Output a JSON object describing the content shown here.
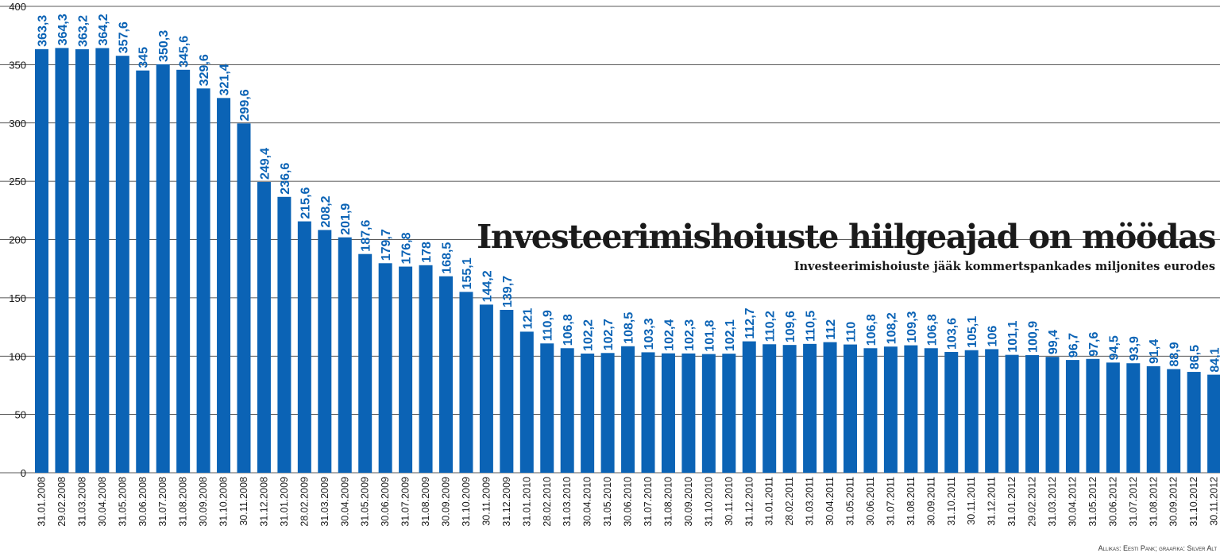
{
  "chart_data": {
    "type": "bar",
    "title": "Investeerimishoiuste hiilgeajad on möödas",
    "subtitle": "Investeerimishoiuste jääk kommertspankades miljonites eurodes",
    "source": "Allikas: Eesti Pank; graafika: Silver Alt",
    "ylim": [
      0,
      400
    ],
    "yticks": [
      0,
      50,
      100,
      150,
      200,
      250,
      300,
      350,
      400
    ],
    "categories": [
      "31.01.2008",
      "29.02.2008",
      "31.03.2008",
      "30.04.2008",
      "31.05.2008",
      "30.06.2008",
      "31.07.2008",
      "31.08.2008",
      "30.09.2008",
      "31.10.2008",
      "30.11.2008",
      "31.12.2008",
      "31.01.2009",
      "28.02.2009",
      "31.03.2009",
      "30.04.2009",
      "31.05.2009",
      "30.06.2009",
      "31.07.2009",
      "31.08.2009",
      "30.09.2009",
      "31.10.2009",
      "30.11.2009",
      "31.12.2009",
      "31.01.2010",
      "28.02.2010",
      "31.03.2010",
      "30.04.2010",
      "31.05.2010",
      "30.06.2010",
      "31.07.2010",
      "31.08.2010",
      "30.09.2010",
      "31.10.2010",
      "30.11.2010",
      "31.12.2010",
      "31.01.2011",
      "28.02.2011",
      "31.03.2011",
      "30.04.2011",
      "31.05.2011",
      "30.06.2011",
      "31.07.2011",
      "31.08.2011",
      "30.09.2011",
      "31.10.2011",
      "30.11.2011",
      "31.12.2011",
      "31.01.2012",
      "29.02.2012",
      "31.03.2012",
      "30.04.2012",
      "31.05.2012",
      "30.06.2012",
      "31.07.2012",
      "31.08.2012",
      "30.09.2012",
      "31.10.2012",
      "30.11.2012"
    ],
    "values": [
      363.3,
      364.3,
      363.2,
      364.2,
      357.6,
      345,
      350.3,
      345.6,
      329.6,
      321.4,
      299.6,
      249.4,
      236.6,
      215.6,
      208.2,
      201.9,
      187.6,
      179.7,
      176.8,
      178,
      168.5,
      155.1,
      144.2,
      139.7,
      121,
      110.9,
      106.8,
      102.2,
      102.7,
      108.5,
      103.3,
      102.4,
      102.3,
      101.8,
      102.1,
      112.7,
      110.2,
      109.6,
      110.5,
      112,
      110,
      106.8,
      108.2,
      109.3,
      106.8,
      103.6,
      105.1,
      106,
      101.1,
      100.9,
      99.4,
      96.7,
      97.6,
      94.5,
      93.9,
      91.4,
      88.9,
      86.5,
      84.1
    ],
    "labels": [
      "363,3",
      "364,3",
      "363,2",
      "364,2",
      "357,6",
      "345",
      "350,3",
      "345,6",
      "329,6",
      "321,4",
      "299,6",
      "249,4",
      "236,6",
      "215,6",
      "208,2",
      "201,9",
      "187,6",
      "179,7",
      "176,8",
      "178",
      "168,5",
      "155,1",
      "144,2",
      "139,7",
      "121",
      "110,9",
      "106,8",
      "102,2",
      "102,7",
      "108,5",
      "103,3",
      "102,4",
      "102,3",
      "101,8",
      "102,1",
      "112,7",
      "110,2",
      "109,6",
      "110,5",
      "112",
      "110",
      "106,8",
      "108,2",
      "109,3",
      "106,8",
      "103,6",
      "105,1",
      "106",
      "101,1",
      "100,9",
      "99,4",
      "96,7",
      "97,6",
      "94,5",
      "93,9",
      "91,4",
      "88,9",
      "86,5",
      "84,1"
    ],
    "color": "#0b63b5"
  }
}
